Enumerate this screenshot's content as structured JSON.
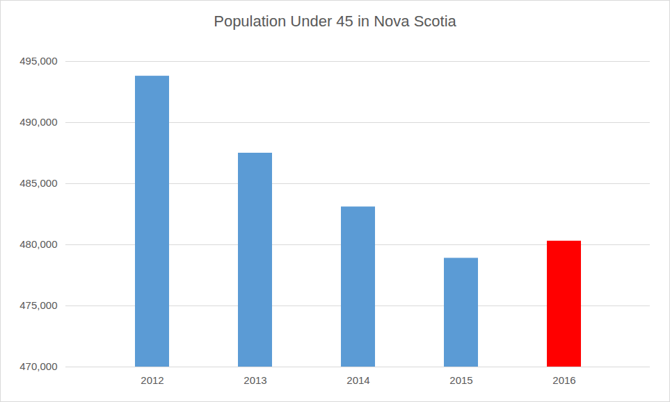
{
  "chart_data": {
    "type": "bar",
    "title": "Population Under 45 in Nova Scotia",
    "categories": [
      "2012",
      "2013",
      "2014",
      "2015",
      "2016"
    ],
    "values": [
      493800,
      487500,
      483100,
      478900,
      480300
    ],
    "colors": [
      "#5b9bd5",
      "#5b9bd5",
      "#5b9bd5",
      "#5b9bd5",
      "#ff0000"
    ],
    "ylim": [
      470000,
      495000
    ],
    "yticks": [
      {
        "value": 470000,
        "label": "470,000"
      },
      {
        "value": 475000,
        "label": "475,000"
      },
      {
        "value": 480000,
        "label": "480,000"
      },
      {
        "value": 485000,
        "label": "485,000"
      },
      {
        "value": 490000,
        "label": "490,000"
      },
      {
        "value": 495000,
        "label": "495,000"
      }
    ],
    "grid": true
  }
}
